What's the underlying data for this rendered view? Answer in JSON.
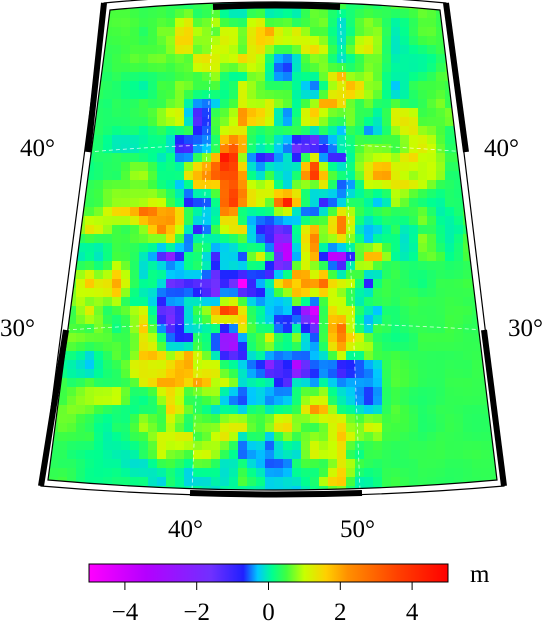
{
  "map": {
    "latitude_labels": {
      "lat40_left": "40°",
      "lat40_right": "40°",
      "lat30_left": "30°",
      "lat30_right": "30°"
    },
    "longitude_labels": {
      "lon40": "40°",
      "lon50": "50°"
    }
  },
  "colorbar": {
    "unit": "m",
    "range": [
      -5,
      5
    ],
    "ticks": [
      "−4",
      "−2",
      "0",
      "2",
      "4"
    ],
    "tick_values": [
      -4,
      -2,
      0,
      2,
      4
    ],
    "colors": [
      "#ff00ff",
      "#c000ff",
      "#7030ff",
      "#2020ff",
      "#00c8ff",
      "#00ff90",
      "#40ff40",
      "#c8ff00",
      "#ffd000",
      "#ff8000",
      "#ff4000",
      "#ff0000"
    ]
  }
}
